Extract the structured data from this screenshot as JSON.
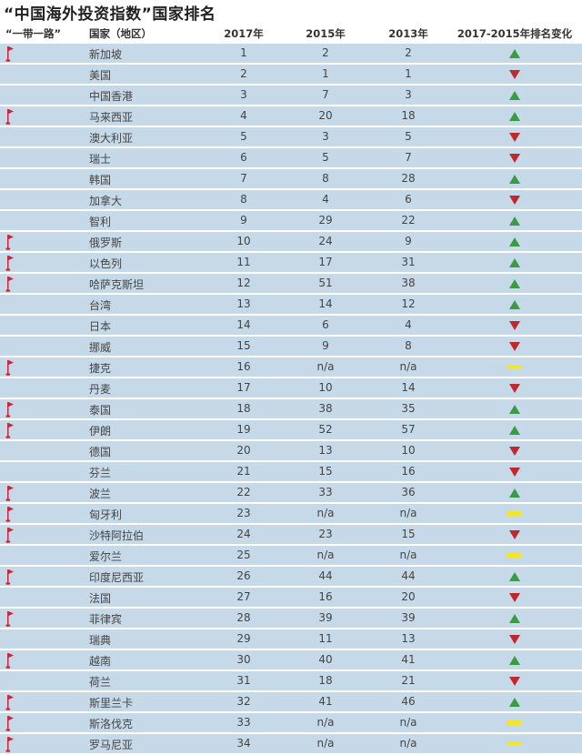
{
  "title": "“中国海外投资指数”国家排名",
  "headers": {
    "belt_road": "“一带一路”",
    "country": "国家（地区）",
    "y2017": "2017年",
    "y2015": "2015年",
    "y2013": "2013年",
    "change": "2017-2015年排名变化"
  },
  "colors": {
    "up": "#3a9a45",
    "down": "#c0282d",
    "same": "#f3e52a",
    "flag": "#c8283c",
    "row_bg": "#c6d9e8"
  },
  "rows": [
    {
      "belt_road": true,
      "country": "新加坡",
      "y2017": "1",
      "y2015": "2",
      "y2013": "2",
      "change": "up"
    },
    {
      "belt_road": false,
      "country": "美国",
      "y2017": "2",
      "y2015": "1",
      "y2013": "1",
      "change": "down"
    },
    {
      "belt_road": false,
      "country": "中国香港",
      "y2017": "3",
      "y2015": "7",
      "y2013": "3",
      "change": "up"
    },
    {
      "belt_road": true,
      "country": "马来西亚",
      "y2017": "4",
      "y2015": "20",
      "y2013": "18",
      "change": "up"
    },
    {
      "belt_road": false,
      "country": "澳大利亚",
      "y2017": "5",
      "y2015": "3",
      "y2013": "5",
      "change": "down"
    },
    {
      "belt_road": false,
      "country": "瑞士",
      "y2017": "6",
      "y2015": "5",
      "y2013": "7",
      "change": "down"
    },
    {
      "belt_road": false,
      "country": "韩国",
      "y2017": "7",
      "y2015": "8",
      "y2013": "28",
      "change": "up"
    },
    {
      "belt_road": false,
      "country": "加拿大",
      "y2017": "8",
      "y2015": "4",
      "y2013": "6",
      "change": "down"
    },
    {
      "belt_road": false,
      "country": "智利",
      "y2017": "9",
      "y2015": "29",
      "y2013": "22",
      "change": "up"
    },
    {
      "belt_road": true,
      "country": "俄罗斯",
      "y2017": "10",
      "y2015": "24",
      "y2013": "9",
      "change": "up"
    },
    {
      "belt_road": true,
      "country": "以色列",
      "y2017": "11",
      "y2015": "17",
      "y2013": "31",
      "change": "up"
    },
    {
      "belt_road": true,
      "country": "哈萨克斯坦",
      "y2017": "12",
      "y2015": "51",
      "y2013": "38",
      "change": "up"
    },
    {
      "belt_road": false,
      "country": "台湾",
      "y2017": "13",
      "y2015": "14",
      "y2013": "12",
      "change": "up"
    },
    {
      "belt_road": false,
      "country": "日本",
      "y2017": "14",
      "y2015": "6",
      "y2013": "4",
      "change": "down"
    },
    {
      "belt_road": false,
      "country": "挪威",
      "y2017": "15",
      "y2015": "9",
      "y2013": "8",
      "change": "down"
    },
    {
      "belt_road": true,
      "country": "捷克",
      "y2017": "16",
      "y2015": "n/a",
      "y2013": "n/a",
      "change": "same"
    },
    {
      "belt_road": false,
      "country": "丹麦",
      "y2017": "17",
      "y2015": "10",
      "y2013": "14",
      "change": "down"
    },
    {
      "belt_road": true,
      "country": "泰国",
      "y2017": "18",
      "y2015": "38",
      "y2013": "35",
      "change": "up"
    },
    {
      "belt_road": true,
      "country": "伊朗",
      "y2017": "19",
      "y2015": "52",
      "y2013": "57",
      "change": "up"
    },
    {
      "belt_road": false,
      "country": "德国",
      "y2017": "20",
      "y2015": "13",
      "y2013": "10",
      "change": "down"
    },
    {
      "belt_road": false,
      "country": "芬兰",
      "y2017": "21",
      "y2015": "15",
      "y2013": "16",
      "change": "down"
    },
    {
      "belt_road": true,
      "country": "波兰",
      "y2017": "22",
      "y2015": "33",
      "y2013": "36",
      "change": "up"
    },
    {
      "belt_road": true,
      "country": "匈牙利",
      "y2017": "23",
      "y2015": "n/a",
      "y2013": "n/a",
      "change": "same"
    },
    {
      "belt_road": true,
      "country": "沙特阿拉伯",
      "y2017": "24",
      "y2015": "23",
      "y2013": "15",
      "change": "down"
    },
    {
      "belt_road": false,
      "country": "爱尔兰",
      "y2017": "25",
      "y2015": "n/a",
      "y2013": "n/a",
      "change": "same"
    },
    {
      "belt_road": true,
      "country": "印度尼西亚",
      "y2017": "26",
      "y2015": "44",
      "y2013": "44",
      "change": "up"
    },
    {
      "belt_road": false,
      "country": "法国",
      "y2017": "27",
      "y2015": "16",
      "y2013": "20",
      "change": "down"
    },
    {
      "belt_road": true,
      "country": "菲律宾",
      "y2017": "28",
      "y2015": "39",
      "y2013": "39",
      "change": "up"
    },
    {
      "belt_road": false,
      "country": "瑞典",
      "y2017": "29",
      "y2015": "11",
      "y2013": "13",
      "change": "down"
    },
    {
      "belt_road": true,
      "country": "越南",
      "y2017": "30",
      "y2015": "40",
      "y2013": "41",
      "change": "up"
    },
    {
      "belt_road": false,
      "country": "荷兰",
      "y2017": "31",
      "y2015": "18",
      "y2013": "21",
      "change": "down"
    },
    {
      "belt_road": true,
      "country": "斯里兰卡",
      "y2017": "32",
      "y2015": "41",
      "y2013": "46",
      "change": "up"
    },
    {
      "belt_road": true,
      "country": "斯洛伐克",
      "y2017": "33",
      "y2015": "n/a",
      "y2013": "n/a",
      "change": "same"
    },
    {
      "belt_road": true,
      "country": "罗马尼亚",
      "y2017": "34",
      "y2015": "n/a",
      "y2013": "n/a",
      "change": "same"
    }
  ]
}
